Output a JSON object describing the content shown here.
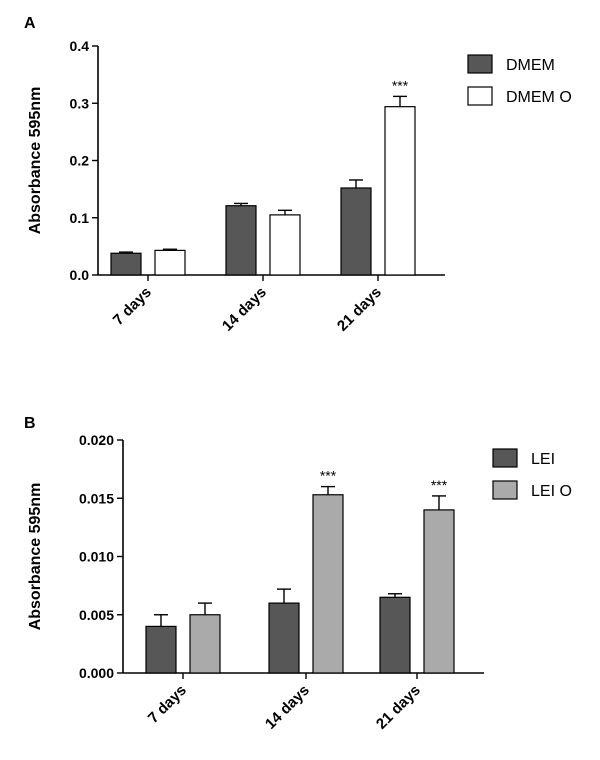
{
  "chart_data": [
    {
      "type": "bar",
      "panel_label": "A",
      "categories": [
        "7 days",
        "14 days",
        "21 days"
      ],
      "series": [
        {
          "name": "DMEM",
          "values": [
            0.038,
            0.121,
            0.152
          ],
          "errors": [
            0.002,
            0.004,
            0.014
          ],
          "color": "#575757"
        },
        {
          "name": "DMEM O",
          "values": [
            0.043,
            0.105,
            0.294
          ],
          "errors": [
            0.002,
            0.008,
            0.018
          ],
          "color": "#ffffff"
        }
      ],
      "annotations": [
        {
          "series": 1,
          "category": 2,
          "text": "***"
        }
      ],
      "ylabel": "Absorbance 595nm",
      "ylim": [
        0,
        0.4
      ],
      "yticks": [
        "0.0",
        "0.1",
        "0.2",
        "0.3",
        "0.4"
      ],
      "grid": false,
      "legend_position": "top-right"
    },
    {
      "type": "bar",
      "panel_label": "B",
      "categories": [
        "7 days",
        "14 days",
        "21 days"
      ],
      "series": [
        {
          "name": "LEI",
          "values": [
            0.004,
            0.006,
            0.0065
          ],
          "errors": [
            0.001,
            0.0012,
            0.0003
          ],
          "color": "#575757"
        },
        {
          "name": "LEI O",
          "values": [
            0.005,
            0.0153,
            0.014
          ],
          "errors": [
            0.001,
            0.0007,
            0.0012
          ],
          "color": "#aaaaaa"
        }
      ],
      "annotations": [
        {
          "series": 1,
          "category": 1,
          "text": "***"
        },
        {
          "series": 1,
          "category": 2,
          "text": "***"
        }
      ],
      "ylabel": "Absorbance 595nm",
      "ylim": [
        0,
        0.02
      ],
      "yticks": [
        "0.000",
        "0.005",
        "0.010",
        "0.015",
        "0.020"
      ],
      "grid": false,
      "legend_position": "top-right"
    }
  ]
}
